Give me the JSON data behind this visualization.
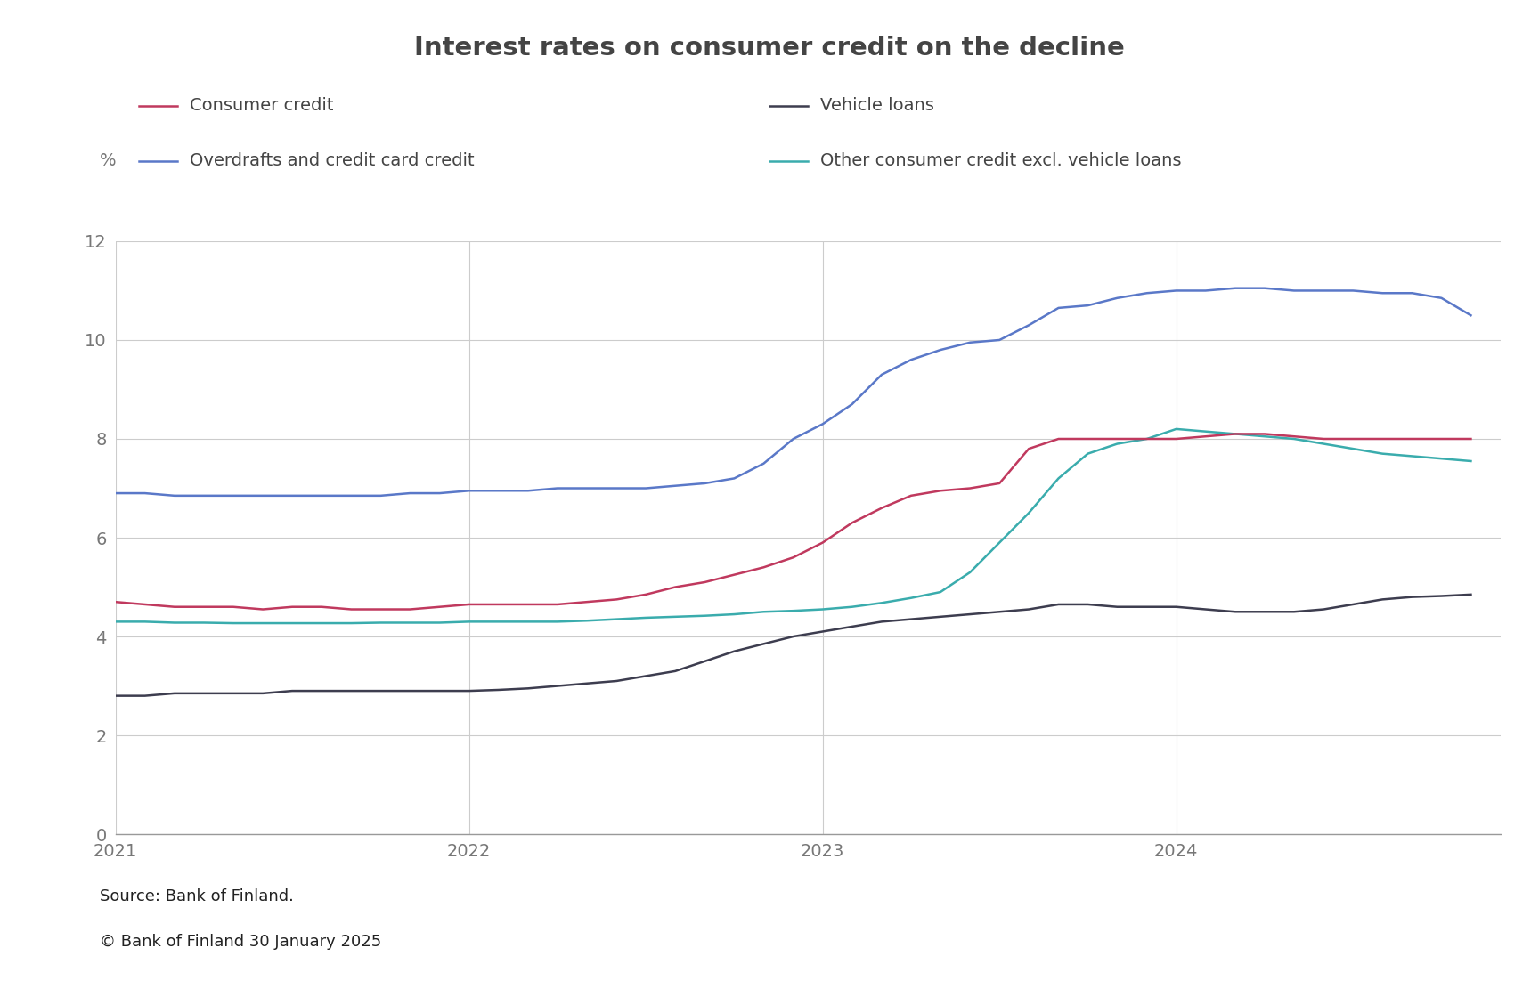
{
  "title": "Interest rates on consumer credit on the decline",
  "ylabel": "%",
  "ylim": [
    0,
    12
  ],
  "yticks": [
    0,
    2,
    4,
    6,
    8,
    10,
    12
  ],
  "background_color": "#ffffff",
  "source_line1": "Source: Bank of Finland.",
  "source_line2": "© Bank of Finland 30 January 2025",
  "title_fontsize": 21,
  "legend_fontsize": 14,
  "tick_fontsize": 14,
  "source_fontsize": 13,
  "series": {
    "consumer_credit": {
      "label": "Consumer credit",
      "color": "#c0395e",
      "linewidth": 1.8,
      "x": [
        2021.0,
        2021.083,
        2021.167,
        2021.25,
        2021.333,
        2021.417,
        2021.5,
        2021.583,
        2021.667,
        2021.75,
        2021.833,
        2021.917,
        2022.0,
        2022.083,
        2022.167,
        2022.25,
        2022.333,
        2022.417,
        2022.5,
        2022.583,
        2022.667,
        2022.75,
        2022.833,
        2022.917,
        2023.0,
        2023.083,
        2023.167,
        2023.25,
        2023.333,
        2023.417,
        2023.5,
        2023.583,
        2023.667,
        2023.75,
        2023.833,
        2023.917,
        2024.0,
        2024.083,
        2024.167,
        2024.25,
        2024.333,
        2024.417,
        2024.5,
        2024.583,
        2024.667,
        2024.75,
        2024.833
      ],
      "y": [
        4.7,
        4.65,
        4.6,
        4.6,
        4.6,
        4.55,
        4.6,
        4.6,
        4.55,
        4.55,
        4.55,
        4.6,
        4.65,
        4.65,
        4.65,
        4.65,
        4.7,
        4.75,
        4.85,
        5.0,
        5.1,
        5.25,
        5.4,
        5.6,
        5.9,
        6.3,
        6.6,
        6.85,
        6.95,
        7.0,
        7.1,
        7.8,
        8.0,
        8.0,
        8.0,
        8.0,
        8.0,
        8.05,
        8.1,
        8.1,
        8.05,
        8.0,
        8.0,
        8.0,
        8.0,
        8.0,
        8.0
      ]
    },
    "vehicle_loans": {
      "label": "Vehicle loans",
      "color": "#3d3d4f",
      "linewidth": 1.8,
      "x": [
        2021.0,
        2021.083,
        2021.167,
        2021.25,
        2021.333,
        2021.417,
        2021.5,
        2021.583,
        2021.667,
        2021.75,
        2021.833,
        2021.917,
        2022.0,
        2022.083,
        2022.167,
        2022.25,
        2022.333,
        2022.417,
        2022.5,
        2022.583,
        2022.667,
        2022.75,
        2022.833,
        2022.917,
        2023.0,
        2023.083,
        2023.167,
        2023.25,
        2023.333,
        2023.417,
        2023.5,
        2023.583,
        2023.667,
        2023.75,
        2023.833,
        2023.917,
        2024.0,
        2024.083,
        2024.167,
        2024.25,
        2024.333,
        2024.417,
        2024.5,
        2024.583,
        2024.667,
        2024.75,
        2024.833
      ],
      "y": [
        2.8,
        2.8,
        2.85,
        2.85,
        2.85,
        2.85,
        2.9,
        2.9,
        2.9,
        2.9,
        2.9,
        2.9,
        2.9,
        2.92,
        2.95,
        3.0,
        3.05,
        3.1,
        3.2,
        3.3,
        3.5,
        3.7,
        3.85,
        4.0,
        4.1,
        4.2,
        4.3,
        4.35,
        4.4,
        4.45,
        4.5,
        4.55,
        4.65,
        4.65,
        4.6,
        4.6,
        4.6,
        4.55,
        4.5,
        4.5,
        4.5,
        4.55,
        4.65,
        4.75,
        4.8,
        4.82,
        4.85
      ]
    },
    "overdrafts": {
      "label": "Overdrafts and credit card credit",
      "color": "#5a78c8",
      "linewidth": 1.8,
      "x": [
        2021.0,
        2021.083,
        2021.167,
        2021.25,
        2021.333,
        2021.417,
        2021.5,
        2021.583,
        2021.667,
        2021.75,
        2021.833,
        2021.917,
        2022.0,
        2022.083,
        2022.167,
        2022.25,
        2022.333,
        2022.417,
        2022.5,
        2022.583,
        2022.667,
        2022.75,
        2022.833,
        2022.917,
        2023.0,
        2023.083,
        2023.167,
        2023.25,
        2023.333,
        2023.417,
        2023.5,
        2023.583,
        2023.667,
        2023.75,
        2023.833,
        2023.917,
        2024.0,
        2024.083,
        2024.167,
        2024.25,
        2024.333,
        2024.417,
        2024.5,
        2024.583,
        2024.667,
        2024.75,
        2024.833
      ],
      "y": [
        6.9,
        6.9,
        6.85,
        6.85,
        6.85,
        6.85,
        6.85,
        6.85,
        6.85,
        6.85,
        6.9,
        6.9,
        6.95,
        6.95,
        6.95,
        7.0,
        7.0,
        7.0,
        7.0,
        7.05,
        7.1,
        7.2,
        7.5,
        8.0,
        8.3,
        8.7,
        9.3,
        9.6,
        9.8,
        9.95,
        10.0,
        10.3,
        10.65,
        10.7,
        10.85,
        10.95,
        11.0,
        11.0,
        11.05,
        11.05,
        11.0,
        11.0,
        11.0,
        10.95,
        10.95,
        10.85,
        10.5
      ]
    },
    "other_consumer": {
      "label": "Other consumer credit excl. vehicle loans",
      "color": "#3aacad",
      "linewidth": 1.8,
      "x": [
        2021.0,
        2021.083,
        2021.167,
        2021.25,
        2021.333,
        2021.417,
        2021.5,
        2021.583,
        2021.667,
        2021.75,
        2021.833,
        2021.917,
        2022.0,
        2022.083,
        2022.167,
        2022.25,
        2022.333,
        2022.417,
        2022.5,
        2022.583,
        2022.667,
        2022.75,
        2022.833,
        2022.917,
        2023.0,
        2023.083,
        2023.167,
        2023.25,
        2023.333,
        2023.417,
        2023.5,
        2023.583,
        2023.667,
        2023.75,
        2023.833,
        2023.917,
        2024.0,
        2024.083,
        2024.167,
        2024.25,
        2024.333,
        2024.417,
        2024.5,
        2024.583,
        2024.667,
        2024.75,
        2024.833
      ],
      "y": [
        4.3,
        4.3,
        4.28,
        4.28,
        4.27,
        4.27,
        4.27,
        4.27,
        4.27,
        4.28,
        4.28,
        4.28,
        4.3,
        4.3,
        4.3,
        4.3,
        4.32,
        4.35,
        4.38,
        4.4,
        4.42,
        4.45,
        4.5,
        4.52,
        4.55,
        4.6,
        4.68,
        4.78,
        4.9,
        5.3,
        5.9,
        6.5,
        7.2,
        7.7,
        7.9,
        8.0,
        8.2,
        8.15,
        8.1,
        8.05,
        8.0,
        7.9,
        7.8,
        7.7,
        7.65,
        7.6,
        7.55
      ]
    }
  },
  "xticks": [
    2021,
    2022,
    2023,
    2024
  ],
  "xlim": [
    2021.0,
    2024.917
  ],
  "grid_color": "#cccccc",
  "axis_color": "#999999"
}
